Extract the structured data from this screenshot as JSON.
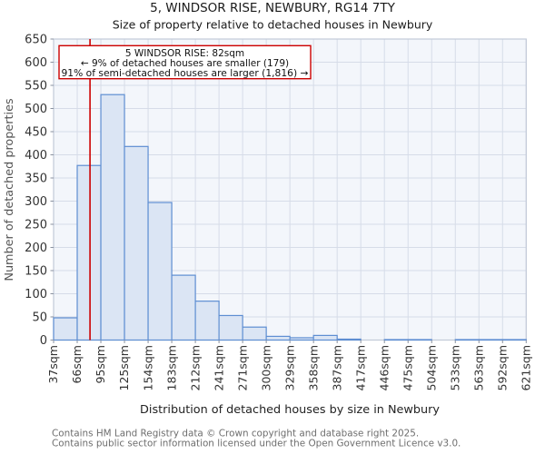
{
  "page": {
    "title": "5, WINDSOR RISE, NEWBURY, RG14 7TY",
    "subtitle": "Size of property relative to detached houses in Newbury",
    "footer_line1": "Contains HM Land Registry data © Crown copyright and database right 2025.",
    "footer_line2": "Contains public sector information licensed under the Open Government Licence v3.0."
  },
  "chart_data": {
    "type": "bar",
    "title": "5, WINDSOR RISE, NEWBURY, RG14 7TY",
    "subtitle": "Size of property relative to detached houses in Newbury",
    "xlabel": "Distribution of detached houses by size in Newbury",
    "ylabel": "Number of detached properties",
    "categories": [
      "37sqm",
      "66sqm",
      "95sqm",
      "125sqm",
      "154sqm",
      "183sqm",
      "212sqm",
      "241sqm",
      "271sqm",
      "300sqm",
      "329sqm",
      "358sqm",
      "387sqm",
      "417sqm",
      "446sqm",
      "475sqm",
      "504sqm",
      "533sqm",
      "563sqm",
      "592sqm",
      "621sqm"
    ],
    "bin_edges_sqm": [
      37,
      66,
      95,
      125,
      154,
      183,
      212,
      241,
      271,
      300,
      329,
      358,
      387,
      417,
      446,
      475,
      504,
      533,
      563,
      592,
      621
    ],
    "values": [
      48,
      377,
      530,
      418,
      297,
      140,
      84,
      53,
      28,
      8,
      5,
      10,
      2,
      0,
      1,
      1,
      0,
      1,
      1,
      1
    ],
    "ylim": [
      0,
      650
    ],
    "ytick_step": 50,
    "grid": true,
    "legend": "none",
    "marker": {
      "value_sqm": 82,
      "label": "82sqm",
      "color": "#cc0000"
    },
    "annotation": {
      "line1": "5 WINDSOR RISE: 82sqm",
      "line2": "← 9% of detached houses are smaller (179)",
      "line3": "91% of semi-detached houses are larger (1,816) →",
      "border_color": "#cc0000"
    },
    "colors": {
      "bar_fill": "#dbe5f4",
      "bar_stroke": "#5e8ed2",
      "plot_bg": "#f3f6fb",
      "grid": "#d6dce8",
      "frame": "#c2cad8",
      "marker_line": "#cc0000",
      "tick_text": "#333333",
      "axis_label_text": "#555555",
      "footer_text": "#6e6e6e"
    }
  }
}
